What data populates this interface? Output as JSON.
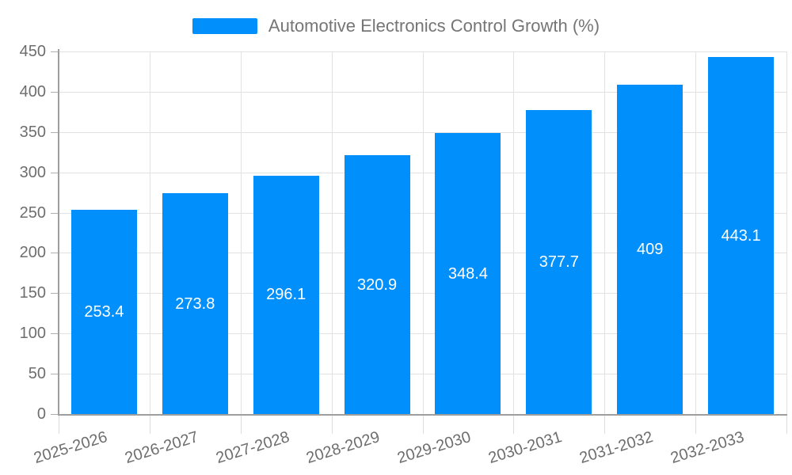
{
  "legend": {
    "label": "Automotive Electronics Control Growth (%)"
  },
  "colors": {
    "bar": "#008FFB",
    "grid": "#e2e2e2",
    "axis_line": "#9e9e9e",
    "y_tick_mark": "#b0b0b0",
    "x_tick_mark": "#dcdcdc",
    "axis_label": "#6e6e6e",
    "legend_text": "#757575",
    "data_label": "#ffffff",
    "background": "#ffffff"
  },
  "chart_data": {
    "type": "bar",
    "title": "Automotive Electronics Control Growth (%)",
    "xlabel": "",
    "ylabel": "",
    "categories": [
      "2025-2026",
      "2026-2027",
      "2027-2028",
      "2028-2029",
      "2029-2030",
      "2030-2031",
      "2031-2032",
      "2032-2033"
    ],
    "values": [
      253.4,
      273.8,
      296.1,
      320.9,
      348.4,
      377.7,
      409,
      443.1
    ],
    "data_labels": [
      "253.4",
      "273.8",
      "296.1",
      "320.9",
      "348.4",
      "377.7",
      "409",
      "443.1"
    ],
    "y_ticks": [
      0,
      50,
      100,
      150,
      200,
      250,
      300,
      350,
      400,
      450
    ],
    "y_tick_labels": [
      "0",
      "50",
      "100",
      "150",
      "200",
      "250",
      "300",
      "350",
      "400",
      "450"
    ],
    "ylim": [
      0,
      450
    ],
    "grid": true,
    "legend_position": "top",
    "data_label_position": "center-of-bar",
    "x_label_rotation_deg": -17
  }
}
